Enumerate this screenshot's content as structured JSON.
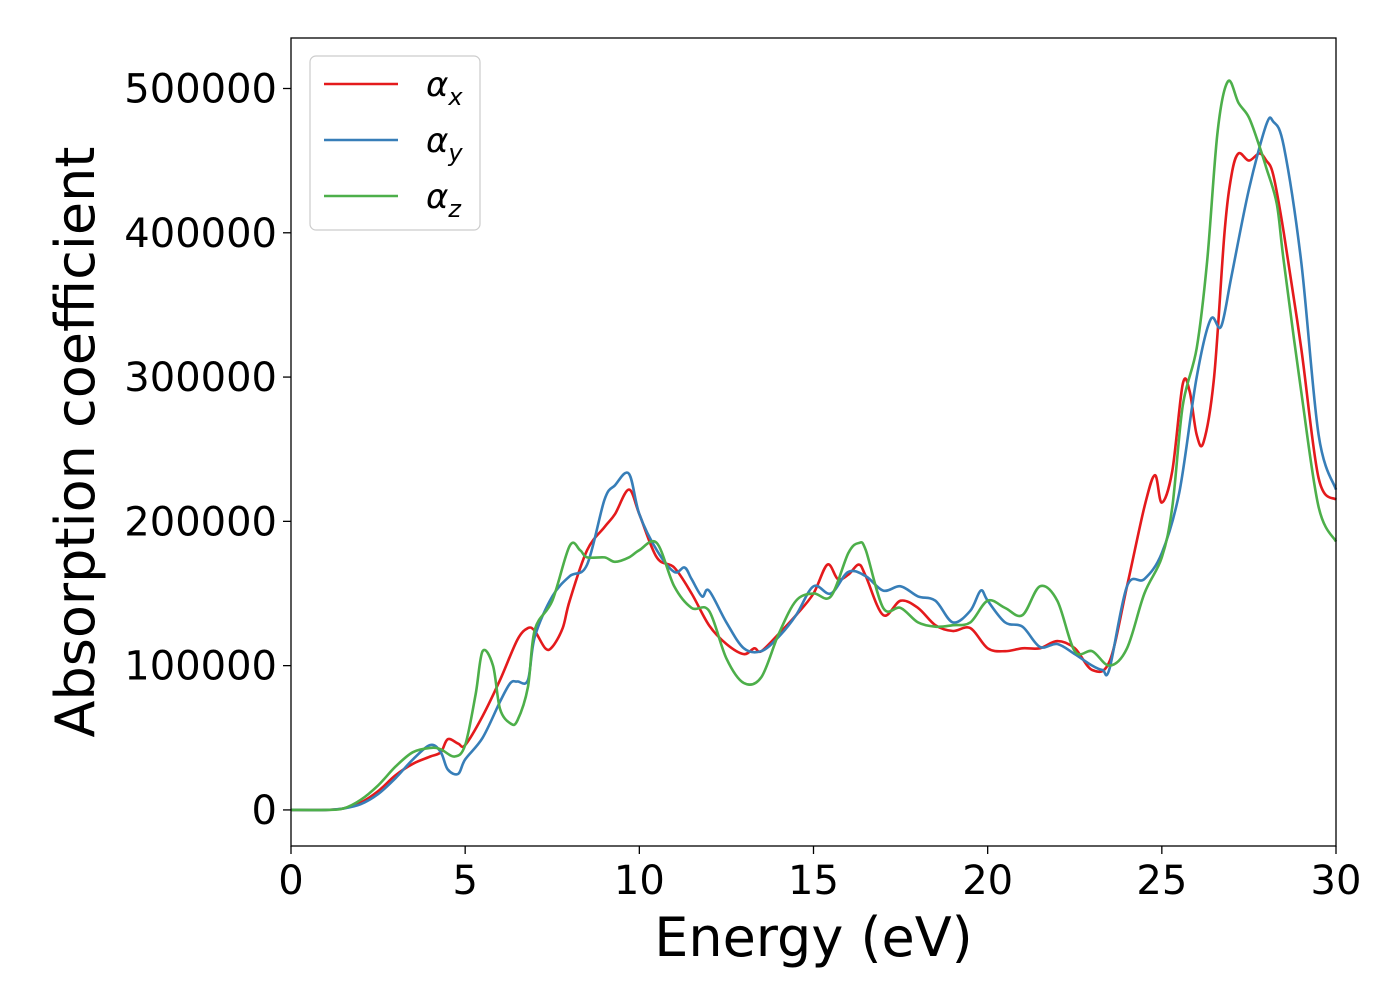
{
  "chart_data": {
    "type": "line",
    "title": "",
    "xlabel": "Energy (eV)",
    "ylabel": "Absorption coefficient",
    "xlim": [
      0,
      30
    ],
    "ylim": [
      -25000,
      535000
    ],
    "xticks": [
      0,
      5,
      10,
      15,
      20,
      25,
      30
    ],
    "yticks": [
      0,
      100000,
      200000,
      300000,
      400000,
      500000
    ],
    "grid": false,
    "legend_position": "top-left",
    "series": [
      {
        "name": "α",
        "subscript": "x",
        "color": "#e41a1c",
        "x": [
          0,
          1,
          1.5,
          2,
          2.5,
          3,
          3.5,
          4,
          4.3,
          4.5,
          4.8,
          5,
          5.5,
          6,
          6.5,
          6.8,
          7,
          7.3,
          7.5,
          7.8,
          8,
          8.5,
          9,
          9.3,
          9.7,
          10,
          10.5,
          11,
          11.5,
          12,
          12.5,
          13,
          13.3,
          13.5,
          14,
          14.5,
          15,
          15.4,
          15.7,
          16,
          16.3,
          16.5,
          17,
          17.5,
          18,
          18.5,
          19,
          19.5,
          20,
          20.5,
          21,
          21.5,
          22,
          22.5,
          23,
          23.5,
          24,
          24.5,
          24.8,
          25,
          25.3,
          25.6,
          25.8,
          26,
          26.2,
          26.5,
          26.8,
          27,
          27.2,
          27.5,
          27.8,
          28,
          28.2,
          28.5,
          29,
          29.5,
          30
        ],
        "y": [
          0,
          0,
          1000,
          5000,
          13000,
          24000,
          32000,
          37000,
          40000,
          49000,
          46000,
          45000,
          65000,
          90000,
          118000,
          126000,
          124000,
          112000,
          113000,
          126000,
          145000,
          180000,
          196000,
          205000,
          222000,
          205000,
          175000,
          168000,
          150000,
          128000,
          115000,
          108000,
          112000,
          110000,
          122000,
          135000,
          150000,
          170000,
          160000,
          163000,
          170000,
          162000,
          135000,
          145000,
          140000,
          128000,
          124000,
          126000,
          112000,
          110000,
          112000,
          112000,
          117000,
          112000,
          97000,
          103000,
          155000,
          210000,
          232000,
          213000,
          235000,
          295000,
          290000,
          260000,
          255000,
          300000,
          400000,
          440000,
          455000,
          450000,
          455000,
          450000,
          440000,
          400000,
          320000,
          230000,
          215000
        ]
      },
      {
        "name": "α",
        "subscript": "y",
        "color": "#377eb8",
        "x": [
          0,
          1,
          1.5,
          2,
          2.5,
          3,
          3.5,
          4,
          4.3,
          4.5,
          4.8,
          5,
          5.5,
          6,
          6.3,
          6.5,
          6.8,
          7,
          7.5,
          8,
          8.5,
          9,
          9.3,
          9.7,
          10,
          10.5,
          11,
          11.3,
          11.5,
          11.8,
          12,
          12.5,
          13,
          13.5,
          14,
          14.5,
          15,
          15.5,
          16,
          16.5,
          17,
          17.5,
          18,
          18.5,
          19,
          19.5,
          19.8,
          20,
          20.5,
          21,
          21.5,
          22,
          22.5,
          23,
          23.3,
          23.5,
          24,
          24.5,
          25,
          25.5,
          26,
          26.4,
          26.7,
          27,
          27.5,
          28,
          28.2,
          28.5,
          29,
          29.5,
          30
        ],
        "y": [
          0,
          0,
          1000,
          4000,
          11000,
          22000,
          35000,
          45000,
          40000,
          28000,
          25000,
          35000,
          50000,
          75000,
          88000,
          89000,
          90000,
          120000,
          148000,
          162000,
          170000,
          215000,
          225000,
          233000,
          205000,
          180000,
          165000,
          168000,
          160000,
          148000,
          152000,
          130000,
          112000,
          110000,
          120000,
          135000,
          155000,
          150000,
          165000,
          162000,
          152000,
          155000,
          148000,
          145000,
          130000,
          138000,
          152000,
          145000,
          130000,
          127000,
          113000,
          115000,
          108000,
          100000,
          97000,
          98000,
          155000,
          160000,
          178000,
          220000,
          300000,
          340000,
          335000,
          370000,
          430000,
          475000,
          477000,
          460000,
          380000,
          260000,
          222000
        ]
      },
      {
        "name": "α",
        "subscript": "z",
        "color": "#4daf4a",
        "x": [
          0,
          1,
          1.5,
          2,
          2.5,
          3,
          3.5,
          4,
          4.3,
          4.7,
          5,
          5.3,
          5.5,
          5.8,
          6,
          6.3,
          6.5,
          6.8,
          7,
          7.5,
          8,
          8.3,
          8.5,
          9,
          9.3,
          9.7,
          10,
          10.5,
          11,
          11.5,
          12,
          12.5,
          13,
          13.5,
          14,
          14.5,
          15,
          15.5,
          16,
          16.3,
          16.5,
          17,
          17.5,
          18,
          18.5,
          19,
          19.5,
          20,
          20.5,
          21,
          21.5,
          22,
          22.5,
          23,
          23.5,
          24,
          24.5,
          25,
          25.3,
          25.6,
          26,
          26.3,
          26.6,
          26.9,
          27.2,
          27.5,
          27.8,
          28,
          28.3,
          28.5,
          29,
          29.5,
          30
        ],
        "y": [
          0,
          0,
          1000,
          7000,
          17000,
          30000,
          40000,
          43000,
          42000,
          37000,
          45000,
          80000,
          110000,
          100000,
          70000,
          60000,
          62000,
          85000,
          125000,
          145000,
          183000,
          180000,
          175000,
          175000,
          172000,
          175000,
          180000,
          185000,
          155000,
          140000,
          138000,
          105000,
          88000,
          92000,
          122000,
          145000,
          150000,
          148000,
          178000,
          185000,
          180000,
          140000,
          140000,
          130000,
          127000,
          128000,
          130000,
          145000,
          140000,
          135000,
          155000,
          145000,
          110000,
          110000,
          100000,
          112000,
          150000,
          175000,
          210000,
          280000,
          320000,
          380000,
          470000,
          505000,
          490000,
          480000,
          460000,
          445000,
          420000,
          380000,
          290000,
          210000,
          186000
        ]
      }
    ]
  }
}
